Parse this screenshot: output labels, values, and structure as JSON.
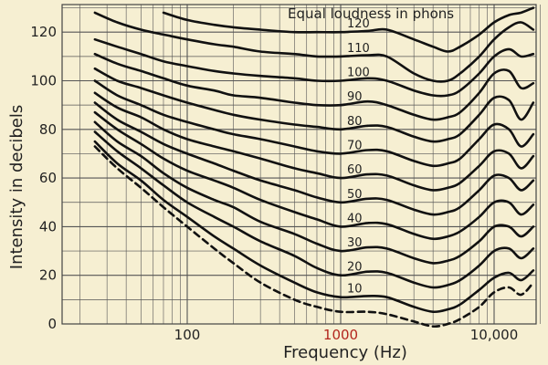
{
  "chart_data": {
    "type": "line",
    "title": "Equal loudness in phons",
    "xlabel": "Frequency (Hz)",
    "ylabel": "Intensity in decibels",
    "x_scale": "log",
    "xlim": [
      20,
      20000
    ],
    "ylim": [
      0,
      130
    ],
    "x_tick_labels": [
      {
        "value": 100,
        "label": "100"
      },
      {
        "value": 1000,
        "label": "1000",
        "color": "#b3261e"
      },
      {
        "value": 10000,
        "label": "10,000"
      }
    ],
    "y_tick_labels": [
      {
        "value": 0,
        "label": "0"
      },
      {
        "value": 20,
        "label": "20"
      },
      {
        "value": 40,
        "label": "40"
      },
      {
        "value": 60,
        "label": "60"
      },
      {
        "value": 80,
        "label": "80"
      },
      {
        "value": 100,
        "label": "100"
      },
      {
        "value": 120,
        "label": "120"
      }
    ],
    "grid": true,
    "colors": {
      "background": "#f6efd2",
      "grid": "#444444",
      "curves": "#111111",
      "highlight_tick": "#b3261e"
    },
    "x": [
      25,
      35,
      50,
      70,
      100,
      150,
      200,
      300,
      500,
      700,
      1000,
      1500,
      2000,
      3000,
      4000,
      5000,
      6000,
      8000,
      10000,
      12500,
      15000,
      18000
    ],
    "series": [
      {
        "label": "120",
        "values": [
          null,
          null,
          null,
          128,
          125,
          123,
          122,
          121,
          120,
          120,
          120,
          120.5,
          121,
          117,
          114,
          112,
          114,
          119,
          124,
          127,
          128,
          130
        ]
      },
      {
        "label": "110",
        "values": [
          128,
          124,
          121,
          119,
          117,
          115,
          114,
          112,
          111,
          110,
          110,
          110.5,
          110,
          103,
          100,
          100,
          103,
          110,
          117,
          122,
          124,
          121
        ]
      },
      {
        "label": "100",
        "values": [
          117,
          114,
          111,
          108,
          106,
          104,
          103,
          102,
          101,
          100,
          100,
          101,
          100,
          96,
          94,
          94,
          96,
          103,
          110,
          113,
          110,
          111
        ]
      },
      {
        "label": "90",
        "values": [
          111,
          107,
          104,
          101,
          98,
          96,
          94,
          93,
          91,
          90,
          90,
          91.5,
          90,
          86,
          84,
          85,
          87,
          95,
          103,
          104,
          97,
          99
        ]
      },
      {
        "label": "80",
        "values": [
          105,
          100,
          97,
          94,
          91,
          88,
          86,
          84,
          82,
          81,
          80,
          81.5,
          81,
          77,
          75,
          76,
          78,
          86,
          93,
          92,
          84,
          91
        ]
      },
      {
        "label": "70",
        "values": [
          100,
          94,
          90,
          86,
          83,
          80,
          78,
          76,
          73,
          71,
          70,
          71.5,
          71,
          67,
          65,
          66,
          68,
          76,
          82,
          80,
          73,
          78
        ]
      },
      {
        "label": "60",
        "values": [
          95,
          89,
          85,
          80,
          76,
          73,
          71,
          68,
          64,
          62,
          60,
          61.5,
          61,
          57,
          55,
          56,
          58,
          65,
          71,
          70,
          64,
          69
        ]
      },
      {
        "label": "50",
        "values": [
          91,
          84,
          79,
          74,
          70,
          66,
          63,
          59,
          55,
          52,
          50,
          51.5,
          51,
          47,
          45,
          46,
          48,
          55,
          61,
          60,
          55,
          59
        ]
      },
      {
        "label": "40",
        "values": [
          87,
          80,
          74,
          68,
          63,
          59,
          56,
          51,
          46,
          43,
          40,
          41.5,
          41,
          37,
          35,
          36,
          38,
          44,
          50,
          50,
          45,
          49
        ]
      },
      {
        "label": "30",
        "values": [
          83,
          75,
          69,
          62,
          56,
          51,
          48,
          42,
          37,
          33,
          30,
          31.5,
          31,
          27,
          25,
          26,
          28,
          34,
          40,
          40,
          36,
          40
        ]
      },
      {
        "label": "20",
        "values": [
          79,
          71,
          64,
          57,
          50,
          44,
          40,
          34,
          28,
          23,
          20,
          21.5,
          21,
          17,
          15,
          16,
          18,
          24,
          30,
          31,
          27,
          31
        ]
      },
      {
        "label": "10",
        "values": [
          75,
          66,
          59,
          51,
          44,
          36,
          31,
          24,
          17,
          13,
          11,
          11.5,
          11,
          7,
          5,
          6,
          8,
          14,
          19,
          21,
          18,
          22
        ]
      },
      {
        "label": "",
        "dashed": true,
        "values": [
          73,
          64,
          56,
          48,
          40,
          31,
          25,
          17,
          10,
          7,
          5,
          5,
          4,
          1,
          -1,
          0,
          2,
          7,
          13,
          15,
          12,
          17
        ]
      }
    ]
  }
}
